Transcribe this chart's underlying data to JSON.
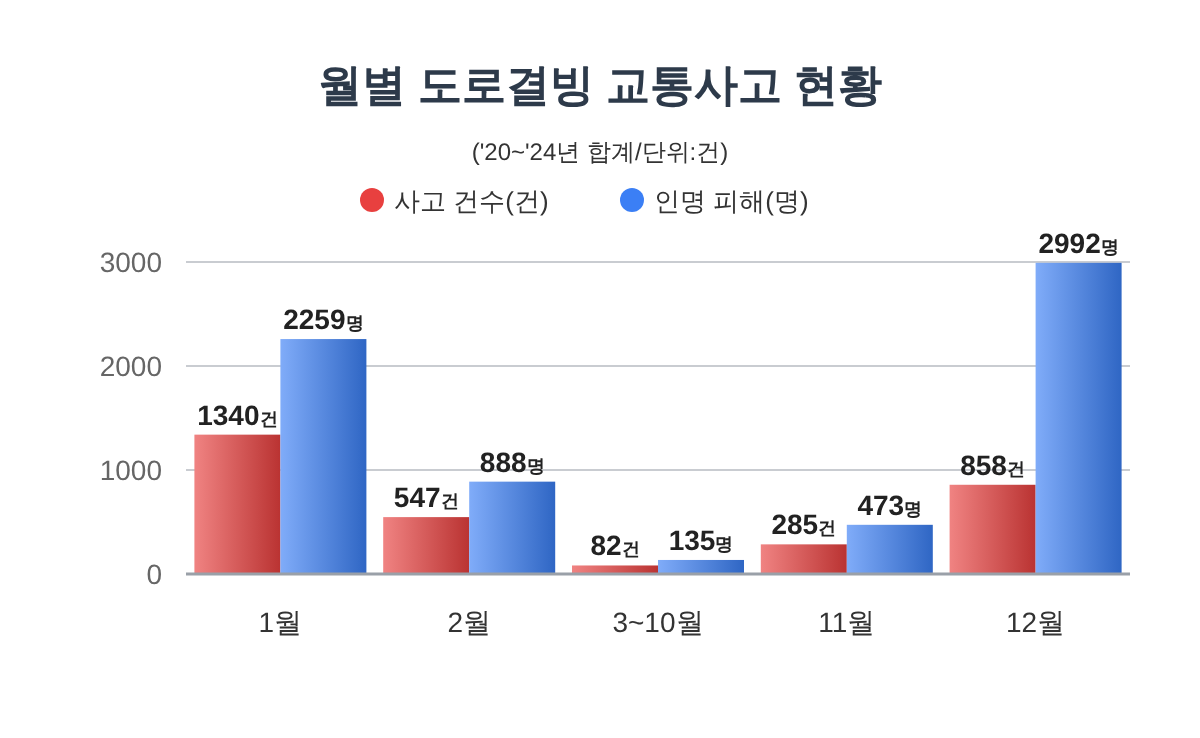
{
  "chart_data": {
    "type": "bar",
    "title": "월별 도로결빙 교통사고 현황",
    "subtitle": "('20~'24년 합계/단위:건)",
    "categories": [
      "1월",
      "2월",
      "3~10월",
      "11월",
      "12월"
    ],
    "series": [
      {
        "name": "사고 건수(건)",
        "color": "#e8403f",
        "values": [
          1340,
          547,
          82,
          285,
          858
        ],
        "value_labels": [
          "1340건",
          "547건",
          "82건",
          "285건",
          "858건"
        ]
      },
      {
        "name": "인명 피해(명)",
        "color": "#3b7ff5",
        "values": [
          2259,
          888,
          135,
          473,
          2992
        ],
        "value_labels": [
          "2259명",
          "888명",
          "135명",
          "473명",
          "2992명"
        ]
      }
    ],
    "ylim": [
      0,
      3000
    ],
    "yticks": [
      0,
      1000,
      2000,
      3000
    ],
    "grid": "y",
    "legend": "top"
  }
}
